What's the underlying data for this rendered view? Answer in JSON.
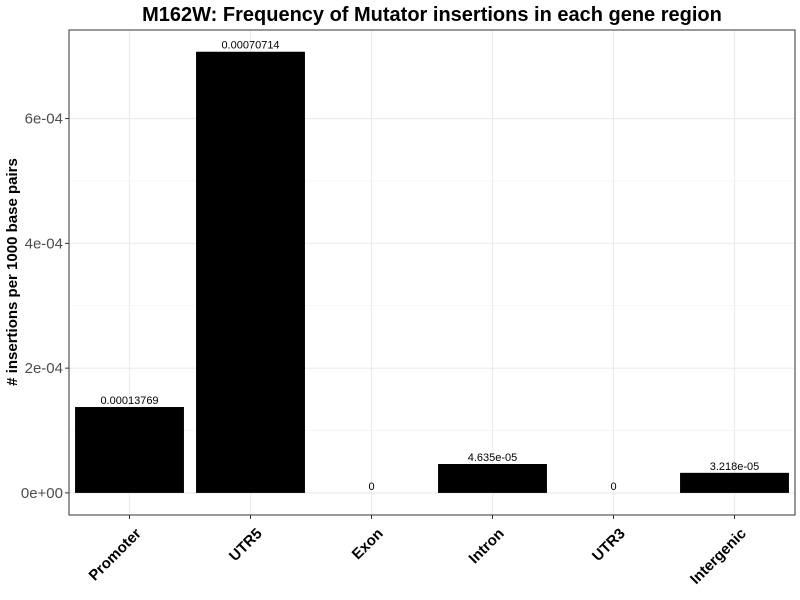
{
  "chart_data": {
    "type": "bar",
    "title": "M162W: Frequency of Mutator insertions in each gene region",
    "xlabel": "",
    "ylabel": "# insertions per 1000 base pairs",
    "categories": [
      "Promoter",
      "UTR5",
      "Exon",
      "Intron",
      "UTR3",
      "Intergenic"
    ],
    "values": [
      0.00013769,
      0.00070714,
      0,
      4.635e-05,
      0,
      3.218e-05
    ],
    "data_labels": [
      "0.00013769",
      "0.00070714",
      "0",
      "4.635e-05",
      "0",
      "3.218e-05"
    ],
    "yticks": [
      0,
      0.0002,
      0.0004,
      0.0006
    ],
    "ytick_labels": [
      "0e+00",
      "2e-04",
      "4e-04",
      "6e-04"
    ],
    "ylim": [
      -3.54e-05,
      0.000742
    ],
    "bar_color": "#000000",
    "grid": true,
    "legend": "none"
  }
}
